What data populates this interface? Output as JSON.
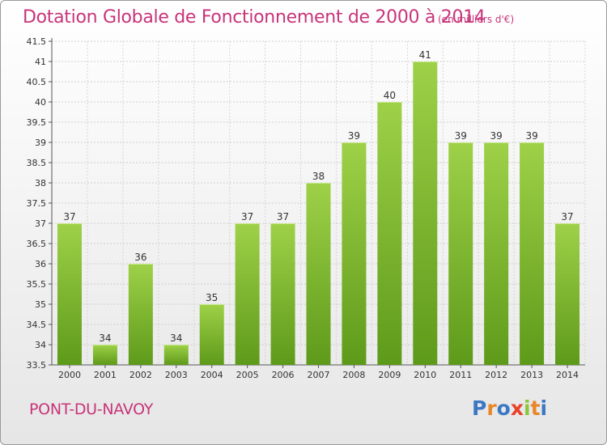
{
  "header": {
    "title": "Dotation Globale de Fonctionnement de 2000 à 2014",
    "subtitle": "(en milliers d'€)"
  },
  "footer": {
    "commune": "PONT-DU-NAVOY",
    "logo_text": "Proxiti"
  },
  "colors": {
    "title": "#c8347a",
    "bar_top": "#9ed148",
    "bar_bottom": "#5e9a1a"
  },
  "chart_data": {
    "type": "bar",
    "title": "Dotation Globale de Fonctionnement de 2000 à 2014",
    "subtitle": "(en milliers d'€)",
    "categories": [
      "2000",
      "2001",
      "2002",
      "2003",
      "2004",
      "2005",
      "2006",
      "2007",
      "2008",
      "2009",
      "2010",
      "2011",
      "2012",
      "2013",
      "2014"
    ],
    "values": [
      37,
      34,
      36,
      34,
      35,
      37,
      37,
      38,
      39,
      40,
      41,
      39,
      39,
      39,
      37
    ],
    "ylim": [
      33.5,
      41.5
    ],
    "yticks": [
      33.5,
      34,
      34.5,
      35,
      35.5,
      36,
      36.5,
      37,
      37.5,
      38,
      38.5,
      39,
      39.5,
      40,
      40.5,
      41,
      41.5
    ],
    "grid": true,
    "legend": "none"
  }
}
